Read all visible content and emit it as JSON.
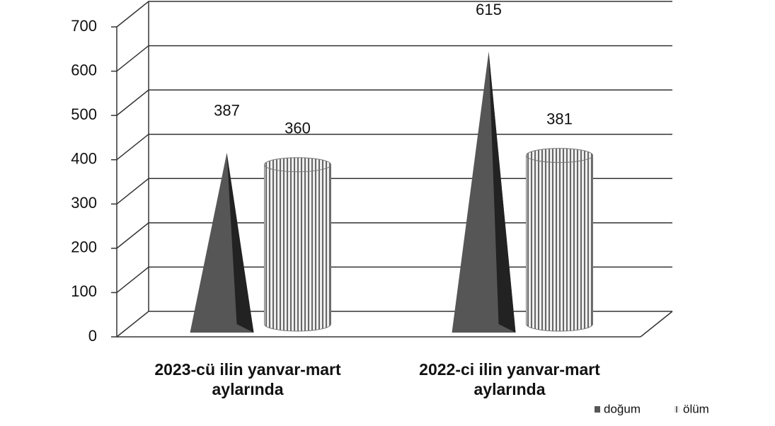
{
  "chart_data": {
    "type": "bar3d",
    "categories": [
      "2023-cü ilin yanvar-mart aylarında",
      "2022-ci ilin yanvar-mart aylarında"
    ],
    "series": [
      {
        "name": "doğum",
        "color": "#565656",
        "shape": "cone",
        "values": [
          387,
          615
        ]
      },
      {
        "name": "ölüm",
        "color": "#777777",
        "shape": "cylinder",
        "values": [
          360,
          381
        ]
      }
    ],
    "ylim": [
      0,
      700
    ],
    "yticks": [
      0,
      100,
      200,
      300,
      400,
      500,
      600,
      700
    ],
    "grid": true,
    "legend": "bottom-right"
  }
}
